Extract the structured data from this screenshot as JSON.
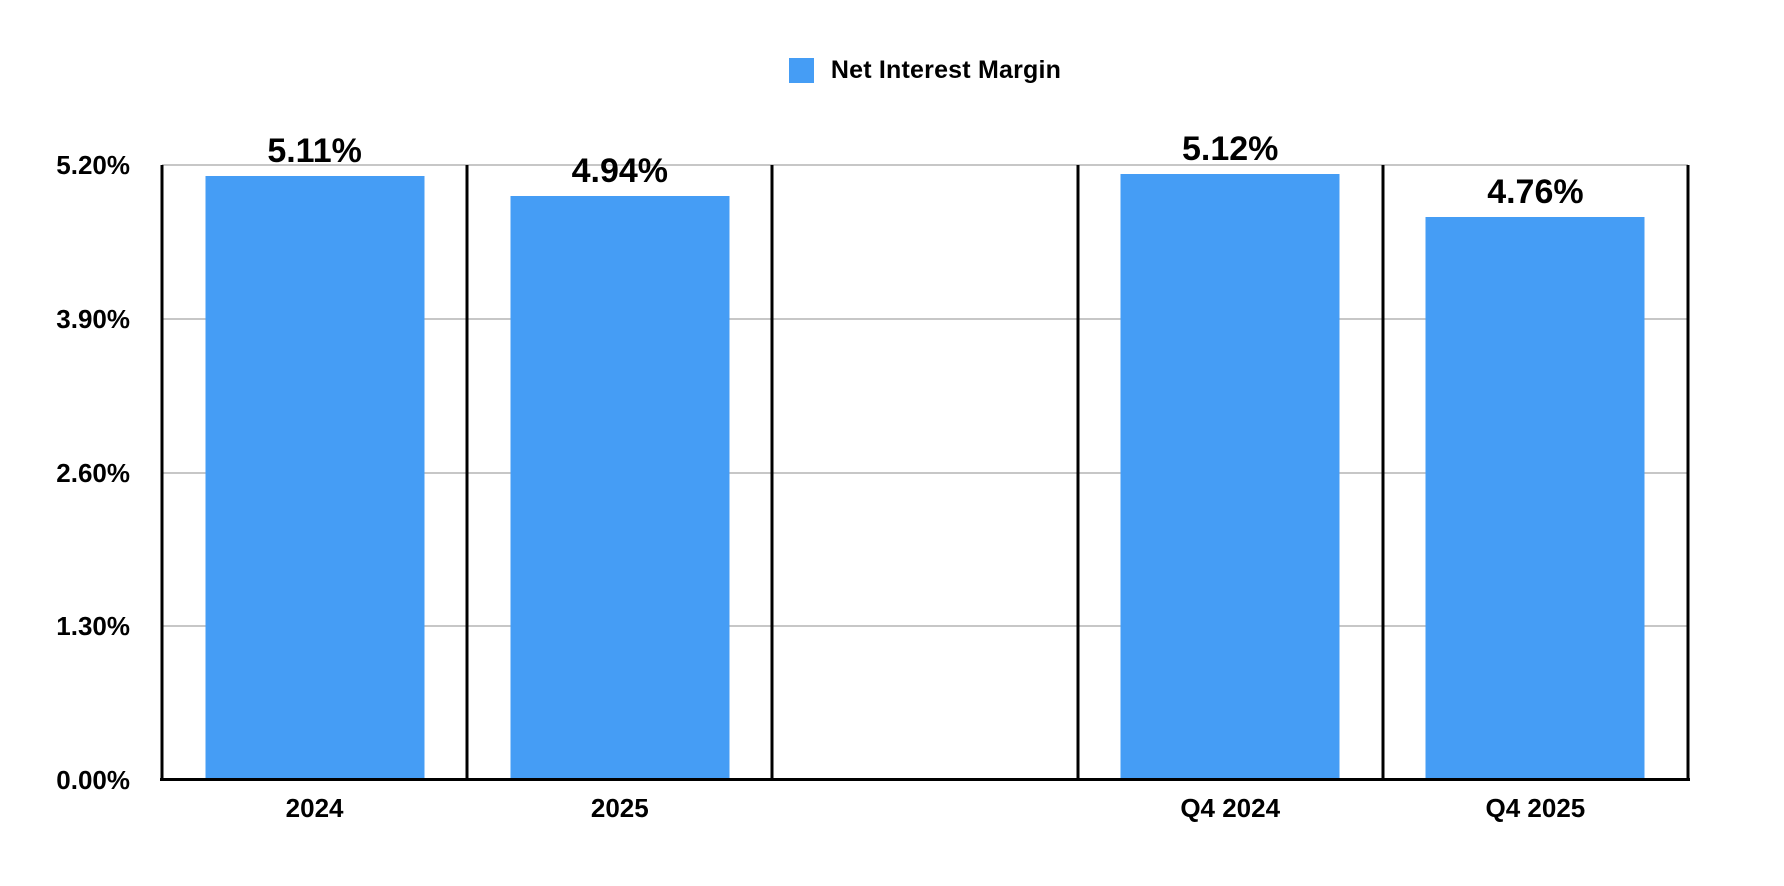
{
  "chart_data": {
    "type": "bar",
    "title": "",
    "legend": [
      "Net Interest Margin"
    ],
    "legend_position": "top-center",
    "categories": [
      "2024",
      "2025",
      "",
      "Q4 2024",
      "Q4 2025"
    ],
    "series": [
      {
        "name": "Net Interest Margin",
        "values": [
          5.11,
          4.94,
          null,
          5.12,
          4.76
        ],
        "labels": [
          "5.11%",
          "4.94%",
          "",
          "5.12%",
          "4.76%"
        ],
        "color": "#459DF5"
      }
    ],
    "ylim": [
      0,
      5.2
    ],
    "yticks": [
      {
        "value": 0.0,
        "label": "0.00%"
      },
      {
        "value": 1.3,
        "label": "1.30%"
      },
      {
        "value": 2.6,
        "label": "2.60%"
      },
      {
        "value": 3.9,
        "label": "3.90%"
      },
      {
        "value": 5.2,
        "label": "5.20%"
      }
    ],
    "grid": true,
    "colors": {
      "bar": "#459DF5",
      "gridline": "#c7c7c7",
      "axis": "#000000",
      "text": "#000000",
      "background": "#ffffff"
    }
  }
}
